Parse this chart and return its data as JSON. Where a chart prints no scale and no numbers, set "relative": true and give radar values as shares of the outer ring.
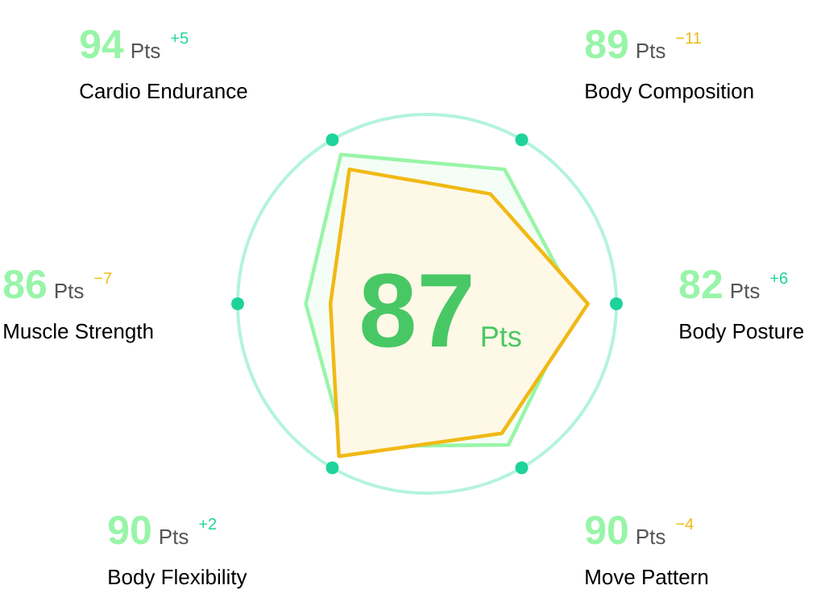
{
  "chart_data": {
    "type": "radar",
    "relative": true,
    "categories": [
      "Body Posture",
      "Move Pattern",
      "Body Flexibility",
      "Muscle Strength",
      "Cardio Endurance",
      "Body Composition"
    ],
    "series": [
      {
        "color": "#98f5a8",
        "values": [
          0.79,
          0.86,
          0.87,
          0.64,
          0.91,
          0.82
        ]
      },
      {
        "color": "#f0b914",
        "values": [
          0.85,
          0.79,
          0.93,
          0.51,
          0.82,
          0.67
        ]
      }
    ],
    "annotations": [
      "87",
      "Pts",
      "82",
      "Pts",
      "+6",
      "90",
      "Pts",
      "−4",
      "90",
      "Pts",
      "+2",
      "86",
      "Pts",
      "−7",
      "94",
      "Pts",
      "+5",
      "89",
      "Pts",
      "−11"
    ]
  }
}
